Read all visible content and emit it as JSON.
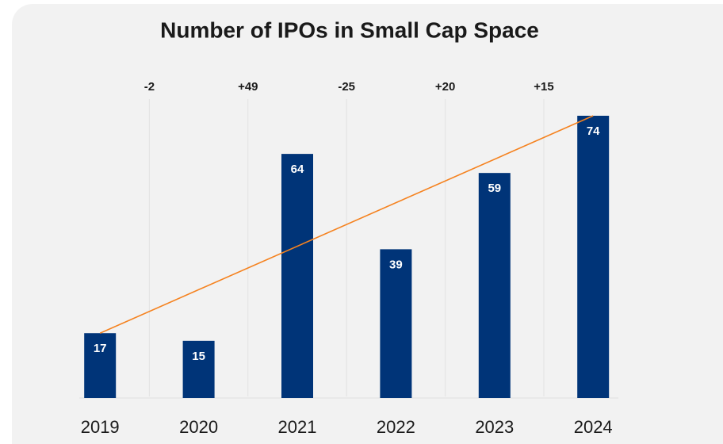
{
  "chart_data": {
    "type": "bar",
    "title": "Number of IPOs in Small Cap Space",
    "categories": [
      "2019",
      "2020",
      "2021",
      "2022",
      "2023",
      "2024"
    ],
    "values": [
      17,
      15,
      64,
      39,
      59,
      74
    ],
    "color": "#003478",
    "ylim": [
      0,
      74
    ],
    "changes": [
      {
        "value": -2,
        "label": "-2"
      },
      {
        "value": 49,
        "label": "+49"
      },
      {
        "value": -25,
        "label": "-25"
      },
      {
        "value": 20,
        "label": "+20"
      },
      {
        "value": 15,
        "label": "+15"
      }
    ],
    "trendline": {
      "color": "#f5821f"
    }
  }
}
